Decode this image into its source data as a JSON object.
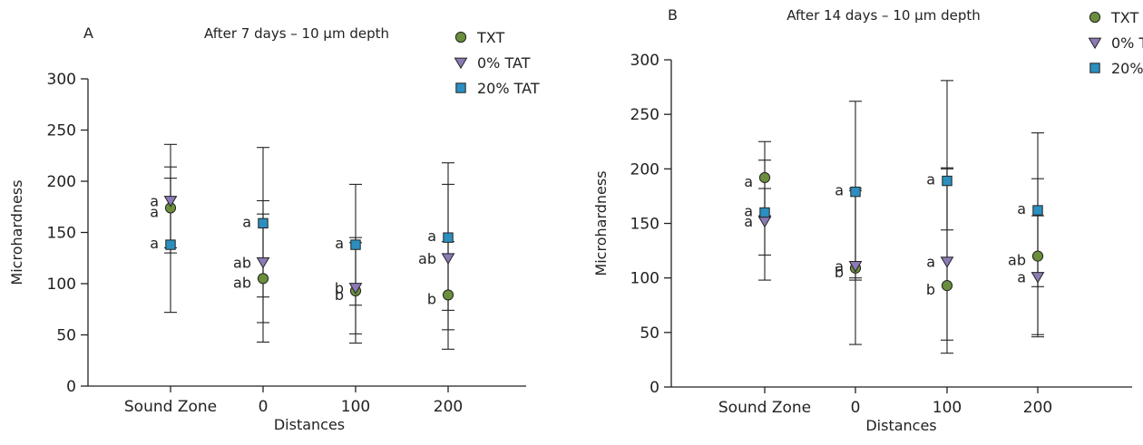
{
  "colors": {
    "TXT": "#6b8e3d",
    "0% TAT": "#8c7ab5",
    "20% TAT": "#2c8fbf"
  },
  "legend": [
    {
      "name": "TXT",
      "marker": "circle"
    },
    {
      "name": "0% TAT",
      "marker": "triangle-down"
    },
    {
      "name": "20% TAT",
      "marker": "square"
    }
  ],
  "chart_data": [
    {
      "type": "scatter",
      "panel_label": "A",
      "title": "After 7 days – 10 μm depth",
      "xlabel": "Distances",
      "ylabel": "Microhardness",
      "ylim": [
        0,
        300
      ],
      "yticks": [
        0,
        50,
        100,
        150,
        200,
        250,
        300
      ],
      "categories": [
        "Sound Zone",
        "0",
        "100",
        "200"
      ],
      "series": [
        {
          "name": "TXT",
          "values": [
            174,
            105,
            93,
            89
          ],
          "err_low": [
            135,
            62,
            51,
            55
          ],
          "err_high": [
            214,
            168,
            140,
            141
          ],
          "labels": [
            "a",
            "ab",
            "b",
            "b"
          ]
        },
        {
          "name": "0% TAT",
          "values": [
            181,
            121,
            96,
            125
          ],
          "err_low": [
            130,
            87,
            42,
            36
          ],
          "err_high": [
            236,
            233,
            197,
            218
          ],
          "labels": [
            "a",
            "ab",
            "b",
            "ab"
          ]
        },
        {
          "name": "20% TAT",
          "values": [
            138,
            159,
            138,
            145
          ],
          "err_low": [
            72,
            43,
            79,
            74
          ],
          "err_high": [
            203,
            181,
            145,
            197
          ],
          "labels": [
            "a",
            "a",
            "a",
            "a"
          ]
        }
      ]
    },
    {
      "type": "scatter",
      "panel_label": "B",
      "title": "After 14 days – 10 μm depth",
      "xlabel": "Distances",
      "ylabel": "Microhardness",
      "ylim": [
        0,
        300
      ],
      "yticks": [
        0,
        50,
        100,
        150,
        200,
        250,
        300
      ],
      "categories": [
        "Sound Zone",
        "0",
        "100",
        "200"
      ],
      "series": [
        {
          "name": "TXT",
          "values": [
            192,
            109,
            93,
            120
          ],
          "err_low": [
            157,
            98,
            31,
            46
          ],
          "err_high": [
            225,
            182,
            201,
            191
          ],
          "labels": [
            "a",
            "b",
            "b",
            "ab"
          ]
        },
        {
          "name": "0% TAT",
          "values": [
            152,
            111,
            115,
            101
          ],
          "err_low": [
            121,
            39,
            43,
            48
          ],
          "err_high": [
            208,
            262,
            281,
            233
          ],
          "labels": [
            "a",
            "a",
            "a",
            "a"
          ]
        },
        {
          "name": "20% TAT",
          "values": [
            160,
            179,
            189,
            162
          ],
          "err_low": [
            98,
            100,
            144,
            92
          ],
          "err_high": [
            182,
            180,
            200,
            157
          ],
          "labels": [
            "a",
            "a",
            "a",
            "a"
          ]
        }
      ]
    }
  ]
}
